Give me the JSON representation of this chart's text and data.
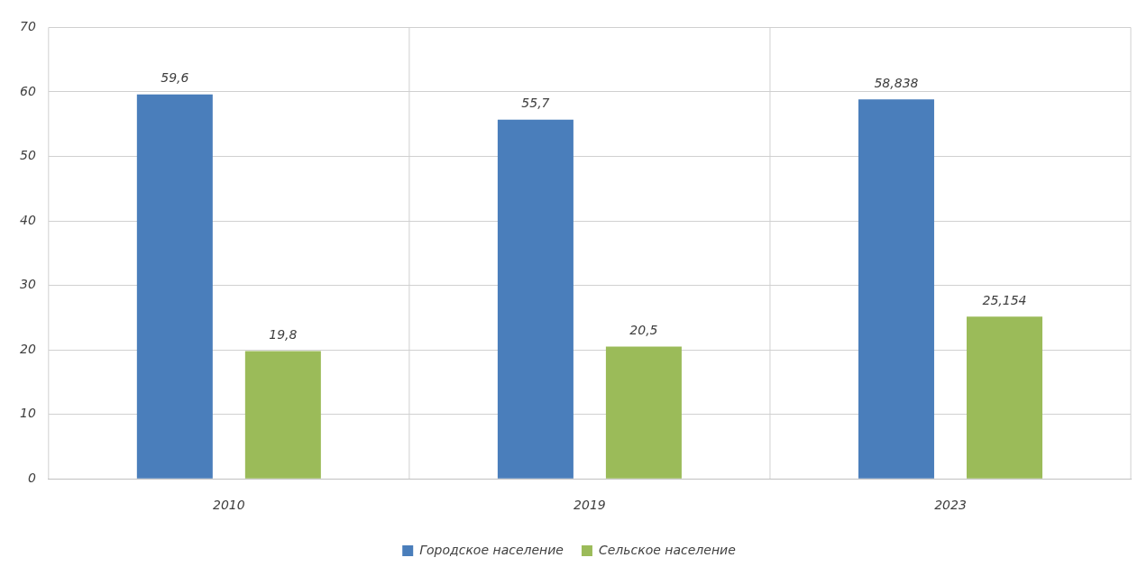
{
  "chart_data": {
    "type": "bar",
    "categories": [
      "2010",
      "2019",
      "2023"
    ],
    "series": [
      {
        "name": "Городское население",
        "color": "#4a7ebb",
        "values": [
          59.6,
          55.7,
          58.838
        ]
      },
      {
        "name": "Сельское население",
        "color": "#9bbb59",
        "values": [
          19.8,
          20.5,
          25.154
        ]
      }
    ],
    "value_labels": [
      [
        "59,6",
        "55,7",
        "58,838"
      ],
      [
        "19,8",
        "20,5",
        "25,154"
      ]
    ],
    "ylim": [
      0,
      70
    ],
    "yticks": [
      0,
      10,
      20,
      30,
      40,
      50,
      60,
      70
    ],
    "grid": true,
    "legend": "bottom"
  }
}
